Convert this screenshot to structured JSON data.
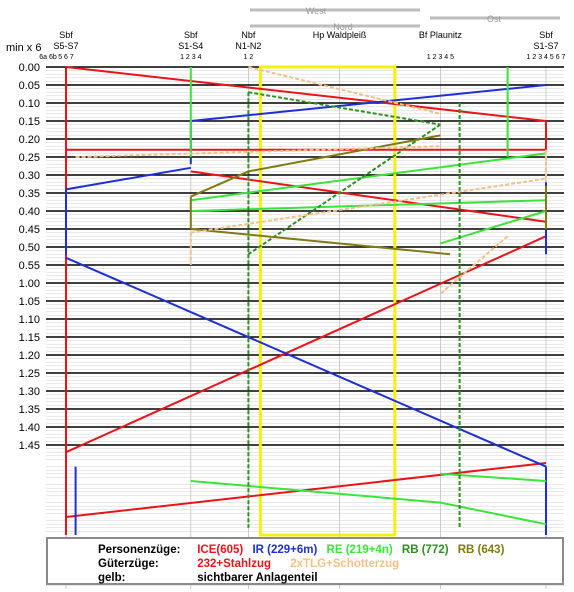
{
  "chart_data": {
    "type": "line",
    "y_axis_unit_label": "min x 6",
    "y_ticks": [
      "0.00",
      "0.05",
      "0.10",
      "0.15",
      "0.20",
      "0.25",
      "0.30",
      "0.35",
      "0.40",
      "0.45",
      "0.50",
      "0.55",
      "1.00",
      "1.05",
      "1.10",
      "1.15",
      "1.20",
      "1.25",
      "1.30",
      "1.35",
      "1.40",
      "1.45"
    ],
    "y_range": [
      0,
      145
    ],
    "direction_labels": {
      "west": "West",
      "nord": "Nord",
      "ost": "Ost"
    },
    "stations": [
      {
        "name": "Sbf",
        "sub": "S5-S7",
        "tracks": "5 6 7",
        "extra": "6a 6b"
      },
      {
        "name": "Sbf",
        "sub": "S1-S4",
        "tracks": "1 2 3 4"
      },
      {
        "name": "Nbf",
        "sub": "N1-N2",
        "tracks": "1 2"
      },
      {
        "name": "Hp Waldpleiß",
        "sub": "",
        "tracks": ""
      },
      {
        "name": "Bf Plaunitz",
        "sub": "",
        "tracks": "1 2 3 4 5"
      },
      {
        "name": "Sbf",
        "sub": "S1-S7",
        "tracks": "1 2 3 4 5 6 7"
      }
    ],
    "station_positions": [
      0,
      26,
      38,
      57,
      78,
      100
    ],
    "series": [
      {
        "name": "ICE(605)",
        "color": "#e8141b"
      },
      {
        "name": "IR (229+6m)",
        "color": "#1f2fd1"
      },
      {
        "name": "RE (219+4n)",
        "color": "#3be33b"
      },
      {
        "name": "RB (772)",
        "color": "#2f8f22"
      },
      {
        "name": "RB (643)",
        "color": "#7f7a14"
      },
      {
        "name": "232+Stahlzug",
        "color": "#e8141b"
      },
      {
        "name": "2xTLG+Schotterzug",
        "color": "#f4c08a"
      }
    ],
    "visible_section_label": "sichtbarer Anlagenteil",
    "visible_section_color": "#f5f10c",
    "visible_section_range": {
      "x": [
        40.5,
        68.5
      ],
      "y": [
        0,
        130
      ]
    },
    "train_lines": [
      {
        "series": 0,
        "pts": [
          [
            0,
            0
          ],
          [
            100,
            15
          ]
        ]
      },
      {
        "series": 0,
        "pts": [
          [
            100,
            15
          ],
          [
            100,
            23
          ]
        ]
      },
      {
        "series": 0,
        "pts": [
          [
            100,
            23
          ],
          [
            0,
            23
          ]
        ]
      },
      {
        "series": 0,
        "pts": [
          [
            26,
            29
          ],
          [
            100,
            43
          ]
        ]
      },
      {
        "series": 0,
        "pts": [
          [
            100,
            47
          ],
          [
            0,
            107
          ]
        ]
      },
      {
        "series": 0,
        "pts": [
          [
            100,
            110
          ],
          [
            0,
            125
          ]
        ]
      },
      {
        "series": 0,
        "pts": [
          [
            0,
            0
          ],
          [
            0,
            130
          ]
        ]
      },
      {
        "series": 1,
        "pts": [
          [
            100,
            5
          ],
          [
            26,
            15
          ]
        ]
      },
      {
        "series": 1,
        "pts": [
          [
            26,
            15
          ],
          [
            26,
            27
          ]
        ]
      },
      {
        "series": 1,
        "pts": [
          [
            26,
            28
          ],
          [
            0,
            34
          ]
        ]
      },
      {
        "series": 1,
        "pts": [
          [
            0,
            34
          ],
          [
            0,
            52
          ]
        ]
      },
      {
        "series": 1,
        "pts": [
          [
            0,
            53
          ],
          [
            100,
            111
          ]
        ]
      },
      {
        "series": 1,
        "pts": [
          [
            100,
            111
          ],
          [
            100,
            130
          ]
        ]
      },
      {
        "series": 1,
        "pts": [
          [
            100,
            32
          ],
          [
            100,
            52
          ]
        ]
      },
      {
        "series": 1,
        "pts": [
          [
            2,
            111
          ],
          [
            2,
            130
          ]
        ]
      },
      {
        "series": 2,
        "pts": [
          [
            26,
            0
          ],
          [
            26,
            25
          ]
        ]
      },
      {
        "series": 2,
        "pts": [
          [
            26,
            37
          ],
          [
            100,
            24
          ]
        ]
      },
      {
        "series": 2,
        "pts": [
          [
            26,
            40
          ],
          [
            100,
            37
          ]
        ]
      },
      {
        "series": 2,
        "pts": [
          [
            26,
            115
          ],
          [
            78,
            121
          ]
        ]
      },
      {
        "series": 2,
        "pts": [
          [
            78,
            121
          ],
          [
            100,
            127
          ]
        ]
      },
      {
        "series": 2,
        "pts": [
          [
            78,
            113
          ],
          [
            100,
            115
          ]
        ]
      },
      {
        "series": 2,
        "pts": [
          [
            100,
            40
          ],
          [
            78,
            49
          ]
        ]
      },
      {
        "series": 2,
        "pts": [
          [
            92,
            0
          ],
          [
            92,
            25
          ]
        ]
      },
      {
        "series": 3,
        "pts": [
          [
            38,
            7
          ],
          [
            78,
            16
          ]
        ]
      },
      {
        "series": 3,
        "pts": [
          [
            38,
            7
          ],
          [
            38,
            52
          ]
        ]
      },
      {
        "series": 3,
        "pts": [
          [
            78,
            16
          ],
          [
            38,
            52
          ]
        ]
      },
      {
        "series": 3,
        "pts": [
          [
            38,
            52
          ],
          [
            38,
            128
          ]
        ]
      },
      {
        "series": 3,
        "pts": [
          [
            82,
            10
          ],
          [
            82,
            128
          ]
        ]
      },
      {
        "series": 4,
        "pts": [
          [
            78,
            19
          ],
          [
            38,
            29
          ]
        ]
      },
      {
        "series": 4,
        "pts": [
          [
            38,
            29
          ],
          [
            26,
            36
          ]
        ]
      },
      {
        "series": 4,
        "pts": [
          [
            100,
            33
          ],
          [
            100,
            45
          ]
        ]
      },
      {
        "series": 4,
        "pts": [
          [
            26,
            45
          ],
          [
            80,
            52
          ]
        ]
      },
      {
        "series": 4,
        "pts": [
          [
            26,
            36
          ],
          [
            26,
            45
          ]
        ]
      },
      {
        "series": 6,
        "pts": [
          [
            38,
            0
          ],
          [
            78,
            13
          ]
        ]
      },
      {
        "series": 6,
        "pts": [
          [
            2,
            25
          ],
          [
            78,
            22
          ]
        ]
      },
      {
        "series": 6,
        "pts": [
          [
            26,
            46
          ],
          [
            100,
            31
          ]
        ]
      },
      {
        "series": 6,
        "pts": [
          [
            26,
            46
          ],
          [
            26,
            55
          ]
        ]
      },
      {
        "series": 6,
        "pts": [
          [
            92,
            47
          ],
          [
            78,
            63
          ]
        ]
      },
      {
        "series": 6,
        "pts": [
          [
            100,
            23
          ],
          [
            100,
            32
          ]
        ]
      }
    ]
  },
  "legend": {
    "row1_label": "Personenzüge:",
    "row2_label": "Güterzüge:",
    "row3_label": "gelb:",
    "ice": "ICE(605)",
    "ir": "IR (229+6m)",
    "re": "RE (219+4n)",
    "rb1": "RB (772)",
    "rb2": "RB (643)",
    "stahl": "232+Stahlzug",
    "schotter": "2xTLG+Schotterzug",
    "gelb_text": "sichtbarer Anlagenteil"
  }
}
